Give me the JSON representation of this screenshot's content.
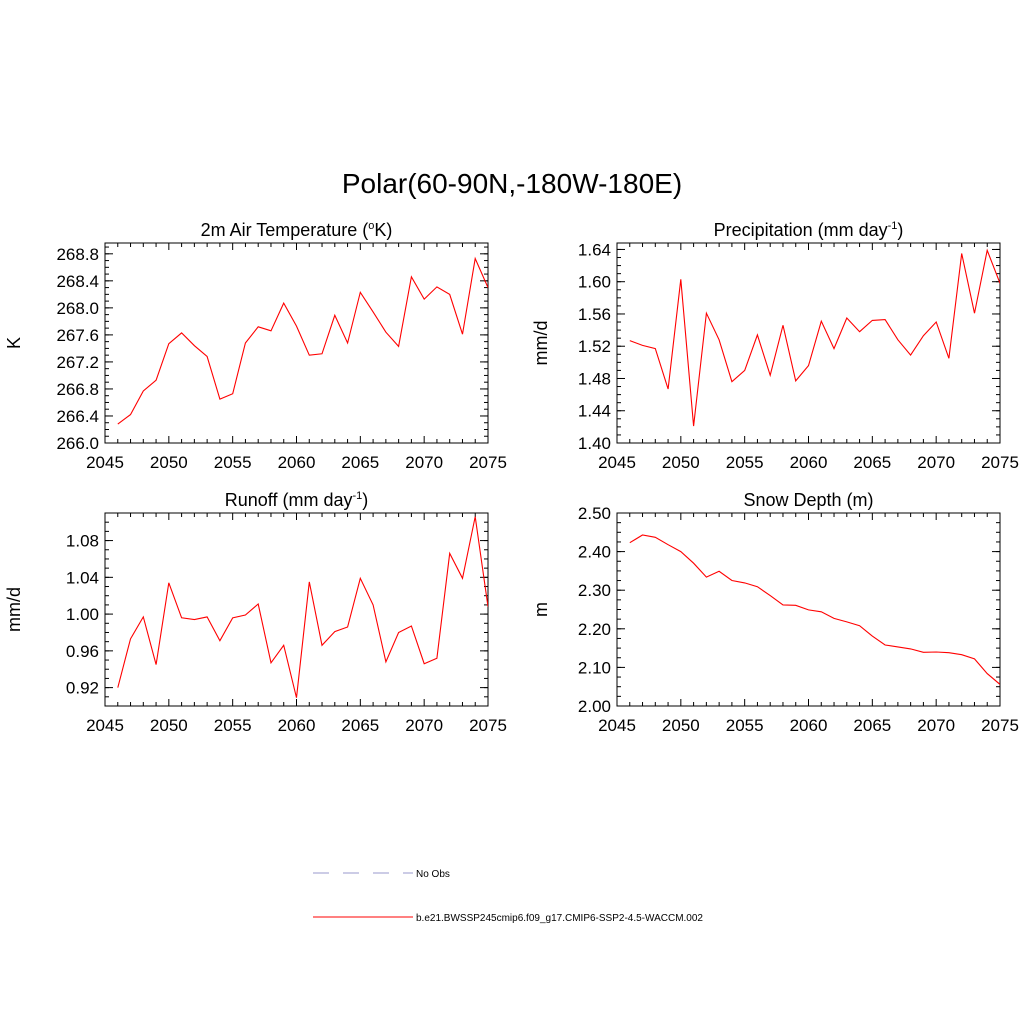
{
  "figure": {
    "title": "Polar(60-90N,-180W-180E)"
  },
  "chart_data": [
    {
      "type": "line",
      "title": "2m Air Temperature (",
      "title_sup": "o",
      "title_end": "K)",
      "ylabel": "K",
      "xlim": [
        2045,
        2075
      ],
      "ylim": [
        266.0,
        268.96
      ],
      "xticks": [
        "2045",
        "2050",
        "2055",
        "2060",
        "2065",
        "2070",
        "2075"
      ],
      "yticks": [
        "266.0",
        "266.4",
        "266.8",
        "267.2",
        "267.6",
        "268.0",
        "268.4",
        "268.8"
      ],
      "series": [
        {
          "color": "#ff0000",
          "x": [
            2046,
            2047,
            2048,
            2049,
            2050,
            2051,
            2052,
            2053,
            2054,
            2055,
            2056,
            2057,
            2058,
            2059,
            2060,
            2061,
            2062,
            2063,
            2064,
            2065,
            2066,
            2067,
            2068,
            2069,
            2070,
            2071,
            2072,
            2073,
            2074,
            2075
          ],
          "y": [
            266.28,
            266.42,
            266.77,
            266.93,
            267.47,
            267.63,
            267.44,
            267.28,
            266.65,
            266.73,
            267.48,
            267.72,
            267.66,
            268.07,
            267.73,
            267.3,
            267.32,
            267.89,
            267.48,
            268.23,
            267.94,
            267.64,
            267.43,
            268.46,
            268.13,
            268.31,
            268.2,
            267.61,
            268.73,
            268.3
          ]
        }
      ]
    },
    {
      "type": "line",
      "title": "Precipitation (mm day",
      "title_sup": "-1",
      "title_end": ")",
      "ylabel": "mm/d",
      "xlim": [
        2045,
        2075
      ],
      "ylim": [
        1.4,
        1.648
      ],
      "xticks": [
        "2045",
        "2050",
        "2055",
        "2060",
        "2065",
        "2070",
        "2075"
      ],
      "yticks": [
        "1.40",
        "1.44",
        "1.48",
        "1.52",
        "1.56",
        "1.60",
        "1.64"
      ],
      "series": [
        {
          "color": "#ff0000",
          "x": [
            2046,
            2047,
            2048,
            2049,
            2050,
            2051,
            2052,
            2053,
            2054,
            2055,
            2056,
            2057,
            2058,
            2059,
            2060,
            2061,
            2062,
            2063,
            2064,
            2065,
            2066,
            2067,
            2068,
            2069,
            2070,
            2071,
            2072,
            2073,
            2074,
            2075
          ],
          "y": [
            1.527,
            1.521,
            1.517,
            1.467,
            1.603,
            1.421,
            1.561,
            1.528,
            1.476,
            1.49,
            1.534,
            1.484,
            1.546,
            1.477,
            1.496,
            1.551,
            1.517,
            1.555,
            1.538,
            1.552,
            1.553,
            1.528,
            1.509,
            1.533,
            1.55,
            1.505,
            1.635,
            1.561,
            1.639,
            1.598
          ]
        }
      ]
    },
    {
      "type": "line",
      "title": "Runoff (mm day",
      "title_sup": "-1",
      "title_end": ")",
      "ylabel": "mm/d",
      "xlim": [
        2045,
        2075
      ],
      "ylim": [
        0.9,
        1.11
      ],
      "xticks": [
        "2045",
        "2050",
        "2055",
        "2060",
        "2065",
        "2070",
        "2075"
      ],
      "yticks": [
        "0.92",
        "0.96",
        "1.00",
        "1.04",
        "1.08"
      ],
      "series": [
        {
          "color": "#ff0000",
          "x": [
            2046,
            2047,
            2048,
            2049,
            2050,
            2051,
            2052,
            2053,
            2054,
            2055,
            2056,
            2057,
            2058,
            2059,
            2060,
            2061,
            2062,
            2063,
            2064,
            2065,
            2066,
            2067,
            2068,
            2069,
            2070,
            2071,
            2072,
            2073,
            2074,
            2075
          ],
          "y": [
            0.92,
            0.973,
            0.997,
            0.945,
            1.034,
            0.996,
            0.994,
            0.997,
            0.971,
            0.996,
            0.999,
            1.011,
            0.947,
            0.966,
            0.909,
            1.035,
            0.966,
            0.981,
            0.986,
            1.039,
            1.01,
            0.948,
            0.98,
            0.987,
            0.946,
            0.952,
            1.066,
            1.039,
            1.106,
            1.008
          ]
        }
      ]
    },
    {
      "type": "line",
      "title": "Snow Depth (m)",
      "title_sup": "",
      "title_end": "",
      "ylabel": "m",
      "xlim": [
        2045,
        2075
      ],
      "ylim": [
        2.0,
        2.5
      ],
      "xticks": [
        "2045",
        "2050",
        "2055",
        "2060",
        "2065",
        "2070",
        "2075"
      ],
      "yticks": [
        "2.00",
        "2.10",
        "2.20",
        "2.30",
        "2.40",
        "2.50"
      ],
      "series": [
        {
          "color": "#ff0000",
          "x": [
            2046,
            2047,
            2048,
            2049,
            2050,
            2051,
            2052,
            2053,
            2054,
            2055,
            2056,
            2057,
            2058,
            2059,
            2060,
            2061,
            2062,
            2063,
            2064,
            2065,
            2066,
            2067,
            2068,
            2069,
            2070,
            2071,
            2072,
            2073,
            2074,
            2075
          ],
          "y": [
            2.423,
            2.443,
            2.437,
            2.418,
            2.4,
            2.37,
            2.334,
            2.349,
            2.325,
            2.319,
            2.309,
            2.286,
            2.262,
            2.261,
            2.249,
            2.244,
            2.227,
            2.218,
            2.208,
            2.181,
            2.158,
            2.153,
            2.148,
            2.139,
            2.14,
            2.138,
            2.133,
            2.122,
            2.084,
            2.056
          ]
        }
      ]
    }
  ],
  "legend": {
    "items": [
      {
        "label": "No Obs",
        "color": "#9999cc",
        "style": "dashed"
      },
      {
        "label": "b.e21.BWSSP245cmip6.f09_g17.CMIP6-SSP2-4.5-WACCM.002",
        "color": "#ff0000",
        "style": "solid"
      }
    ]
  }
}
